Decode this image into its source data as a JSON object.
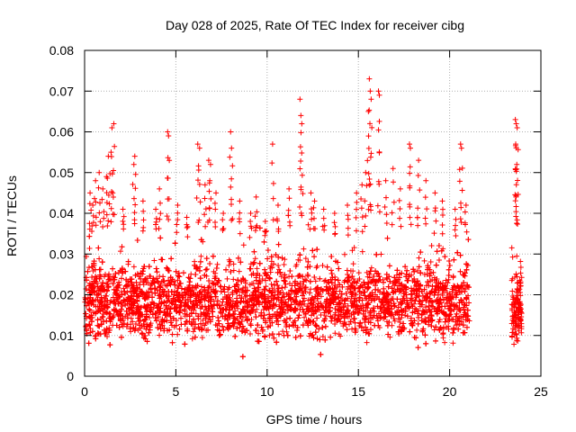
{
  "chart_data": {
    "type": "scatter",
    "title": "Day 028 of 2025, Rate Of TEC Index for receiver cibg",
    "xlabel": "GPS time / hours",
    "ylabel": "ROTI / TECUs",
    "xlim": [
      0,
      25
    ],
    "ylim": [
      0,
      0.08
    ],
    "x_ticks": [
      "0",
      "5",
      "10",
      "15",
      "20",
      "25"
    ],
    "y_ticks": [
      "0",
      "0.01",
      "0.02",
      "0.03",
      "0.04",
      "0.05",
      "0.06",
      "0.07",
      "0.08"
    ],
    "grid": true,
    "marker": "+",
    "series": [
      {
        "color": "#ff0000",
        "segments": [
          {
            "x_start": 0.0,
            "x_end": 21.1,
            "baseline": 0.018,
            "spread": 0.006
          },
          {
            "x_start": 23.4,
            "x_end": 23.95,
            "baseline": 0.016,
            "spread": 0.005
          }
        ],
        "x": [
          1.5,
          1.6,
          1.3,
          1.45,
          2.7,
          2.75,
          4.6,
          4.55,
          6.2,
          6.3,
          6.8,
          6.9,
          8.0,
          8.05,
          10.3,
          11.8,
          11.85,
          11.9,
          15.6,
          15.65,
          15.7,
          15.55,
          16.1,
          16.15,
          17.8,
          17.85,
          18.3,
          20.6,
          20.65,
          23.6,
          23.65,
          23.7,
          23.62,
          23.68,
          0.3,
          0.45,
          0.6,
          0.8,
          1.0,
          1.2,
          2.1,
          3.2,
          3.9,
          4.1,
          5.1,
          5.6,
          6.6,
          7.2,
          7.6,
          8.5,
          9.1,
          9.4,
          9.9,
          10.6,
          11.2,
          12.4,
          12.6,
          13.1,
          13.7,
          14.4,
          14.9,
          15.2,
          15.4,
          16.5,
          16.9,
          17.3,
          18.7,
          19.2,
          19.6,
          20.3,
          20.9
        ],
        "y": [
          0.061,
          0.062,
          0.054,
          0.055,
          0.052,
          0.054,
          0.059,
          0.06,
          0.057,
          0.056,
          0.053,
          0.052,
          0.06,
          0.056,
          0.057,
          0.068,
          0.064,
          0.062,
          0.073,
          0.07,
          0.068,
          0.065,
          0.07,
          0.069,
          0.057,
          0.056,
          0.053,
          0.057,
          0.056,
          0.063,
          0.062,
          0.061,
          0.057,
          0.052,
          0.045,
          0.042,
          0.048,
          0.05,
          0.046,
          0.049,
          0.041,
          0.043,
          0.041,
          0.046,
          0.042,
          0.039,
          0.047,
          0.045,
          0.04,
          0.043,
          0.04,
          0.044,
          0.038,
          0.042,
          0.046,
          0.045,
          0.043,
          0.041,
          0.04,
          0.042,
          0.045,
          0.047,
          0.05,
          0.048,
          0.051,
          0.046,
          0.048,
          0.045,
          0.043,
          0.041,
          0.042
        ]
      }
    ]
  }
}
